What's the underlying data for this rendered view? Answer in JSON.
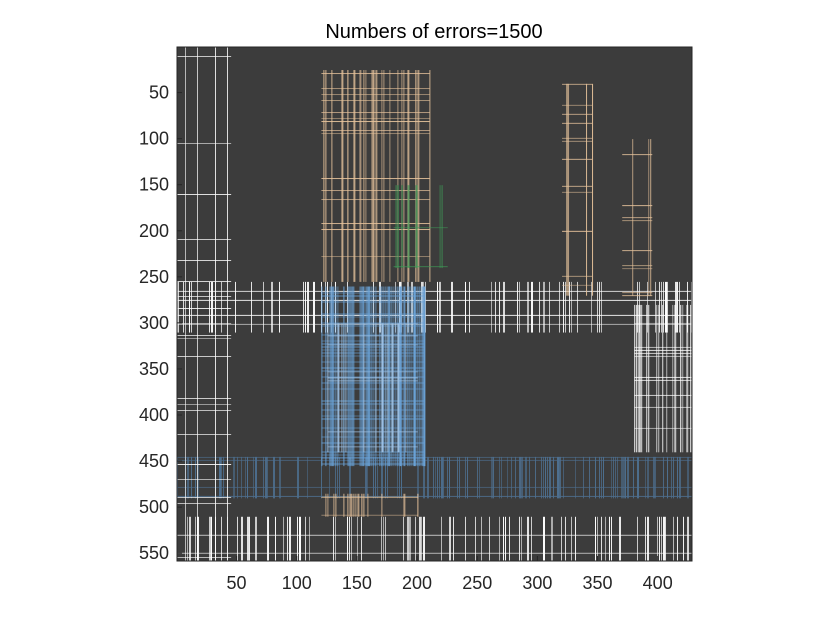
{
  "chart_data": {
    "type": "heatmap",
    "title": "Numbers of errors=1500",
    "xlabel": "",
    "ylabel": "",
    "x_ticks": [
      50,
      100,
      150,
      200,
      250,
      300,
      350,
      400
    ],
    "y_ticks": [
      50,
      100,
      150,
      200,
      250,
      300,
      350,
      400,
      450,
      500,
      550
    ],
    "xlim": [
      0.5,
      428.5
    ],
    "ylim": [
      0.5,
      558.5
    ],
    "y_direction": "reversed",
    "grid": false,
    "legend": "none",
    "colors": {
      "dark": "#3c3c3c",
      "white": "#ffffff",
      "blue": "#6aa3d8",
      "light_blue": "#9fc3e6",
      "steel": "#4d6f8f",
      "orange": "#e8c49c",
      "green": "#3f9b57",
      "black": "#111111"
    },
    "regions": [
      {
        "x": [
          5,
          428
        ],
        "y": [
          0,
          558
        ],
        "color": "dark"
      },
      {
        "x": [
          0,
          428
        ],
        "y": [
          255,
          310
        ],
        "color": "white",
        "density": 0.3
      },
      {
        "x": [
          0,
          428
        ],
        "y": [
          445,
          490
        ],
        "color": "steel",
        "density": 0.45
      },
      {
        "x": [
          120,
          205
        ],
        "y": [
          260,
          455
        ],
        "color": "blue",
        "density": 0.75
      },
      {
        "x": [
          125,
          200
        ],
        "y": [
          300,
          440
        ],
        "color": "light_blue",
        "density": 0.35
      },
      {
        "x": [
          120,
          210
        ],
        "y": [
          25,
          255
        ],
        "color": "orange",
        "density": 0.35
      },
      {
        "x": [
          180,
          225
        ],
        "y": [
          150,
          240
        ],
        "color": "green",
        "density": 0.2
      },
      {
        "x": [
          320,
          345
        ],
        "y": [
          40,
          270
        ],
        "color": "orange",
        "density": 0.3
      },
      {
        "x": [
          370,
          395
        ],
        "y": [
          100,
          270
        ],
        "color": "orange",
        "density": 0.3
      },
      {
        "x": [
          380,
          428
        ],
        "y": [
          280,
          440
        ],
        "color": "white",
        "density": 0.3
      },
      {
        "x": [
          120,
          200
        ],
        "y": [
          485,
          510
        ],
        "color": "orange",
        "density": 0.4
      },
      {
        "x": [
          0,
          428
        ],
        "y": [
          510,
          558
        ],
        "color": "white",
        "density": 0.3
      },
      {
        "x": [
          0,
          45
        ],
        "y": [
          0,
          558
        ],
        "color": "white",
        "density": 0.15
      }
    ]
  }
}
